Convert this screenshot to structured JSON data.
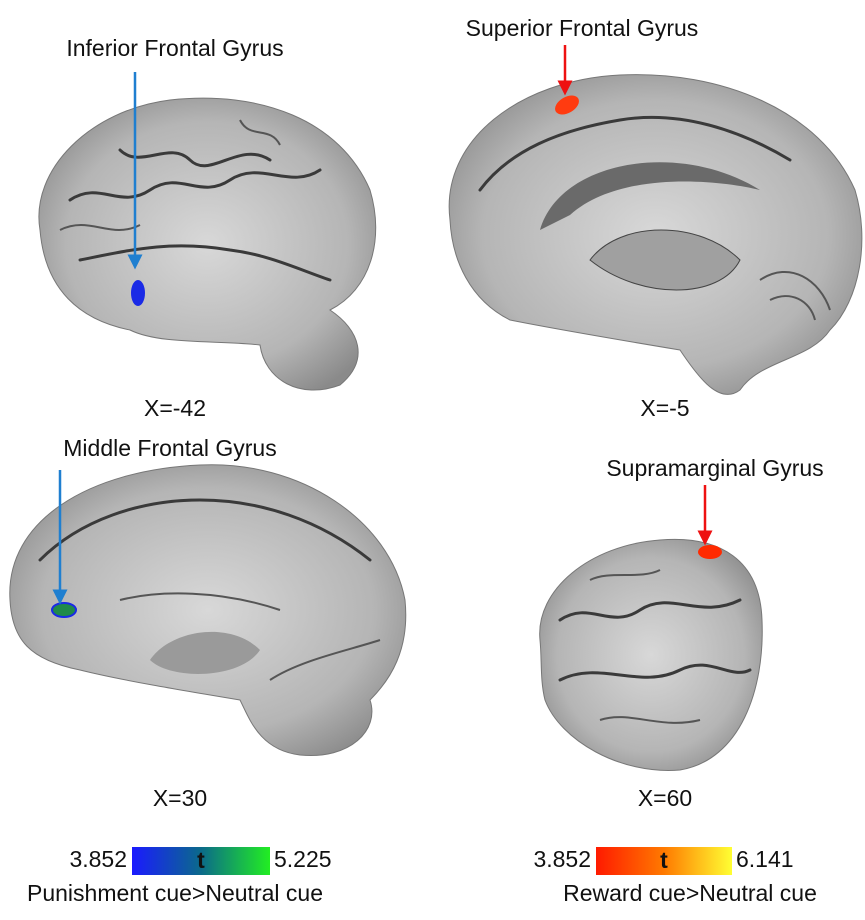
{
  "panels": [
    {
      "label": "Inferior Frontal Gyrus",
      "slice": "X=-42"
    },
    {
      "label": "Superior Frontal Gyrus",
      "slice": "X=-5"
    },
    {
      "label": "Middle Frontal Gyrus",
      "slice": "X=30"
    },
    {
      "label": "Supramarginal Gyrus",
      "slice": "X=60"
    }
  ],
  "colorbars": [
    {
      "min": "3.852",
      "symbol": "t",
      "max": "5.225",
      "caption": "Punishment cue>Neutral cue"
    },
    {
      "min": "3.852",
      "symbol": "t",
      "max": "6.141",
      "caption": "Reward cue>Neutral cue"
    }
  ]
}
